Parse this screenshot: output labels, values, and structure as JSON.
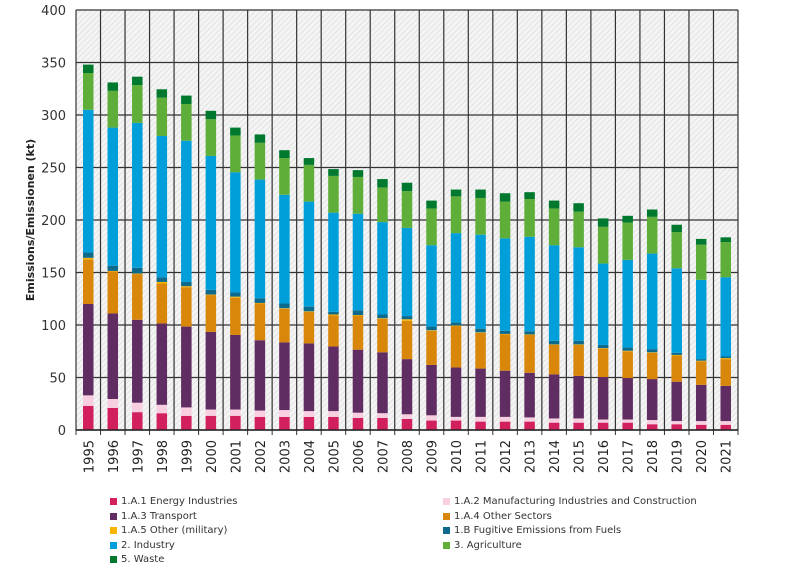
{
  "chart_data": {
    "type": "bar",
    "stacked": true,
    "title": "",
    "xlabel": "",
    "ylabel": "Emissions/Emissionen (kt)",
    "ylim": [
      0,
      400
    ],
    "yticks": [
      0,
      50,
      100,
      150,
      200,
      250,
      300,
      350,
      400
    ],
    "grid": true,
    "background": "hatched",
    "legend_position": "bottom",
    "categories": [
      "1995",
      "1996",
      "1997",
      "1998",
      "1999",
      "2000",
      "2001",
      "2002",
      "2003",
      "2004",
      "2005",
      "2006",
      "2007",
      "2008",
      "2009",
      "2010",
      "2011",
      "2012",
      "2013",
      "2014",
      "2015",
      "2016",
      "2017",
      "2018",
      "2019",
      "2020",
      "2021"
    ],
    "series": [
      {
        "name": "1.A.1 Energy Industries",
        "color": "#d2205f",
        "values": [
          23,
          21,
          17,
          16,
          13.5,
          13.5,
          13.5,
          12.5,
          12.5,
          12.5,
          12.5,
          11.5,
          11.5,
          10.5,
          9,
          9,
          8,
          8,
          8,
          7,
          7,
          7,
          7,
          5.5,
          5.5,
          5,
          5
        ]
      },
      {
        "name": "1.A.2 Manufacturing Industries and Construction",
        "color": "#f8cfe0",
        "values": [
          10,
          8.5,
          9,
          8,
          8,
          6,
          6,
          6,
          6.5,
          5.5,
          5.5,
          5,
          4.5,
          4.5,
          5,
          3.5,
          4.5,
          4.5,
          4,
          4,
          4,
          3,
          3,
          4,
          3,
          3.5,
          3.5
        ]
      },
      {
        "name": "1.A.3 Transport",
        "color": "#5f2d62",
        "values": [
          87,
          81.5,
          79,
          77.5,
          77,
          74,
          71,
          67,
          64.5,
          64.5,
          61.5,
          60,
          58,
          52.5,
          48,
          47,
          46,
          44,
          42.5,
          42,
          40.5,
          40.5,
          39.5,
          39,
          37.5,
          34.5,
          33.5
        ]
      },
      {
        "name": "1.A.4 Other Sectors",
        "color": "#d9870a",
        "values": [
          42.5,
          40,
          43.5,
          38,
          37.5,
          35,
          35.5,
          35,
          32,
          30,
          29.5,
          32.5,
          32,
          36.5,
          32.5,
          39.5,
          34,
          34.5,
          36,
          28,
          29.5,
          27,
          25.5,
          25,
          25,
          22.5,
          25.5
        ]
      },
      {
        "name": "1.A.5 Other (military)",
        "color": "#f7b500",
        "values": [
          1.5,
          0.5,
          0.5,
          1.5,
          1,
          0.5,
          1,
          0.5,
          0.5,
          0.5,
          1,
          0.5,
          0.5,
          1.5,
          0.5,
          0.5,
          0.5,
          0.5,
          0.5,
          0.5,
          0.5,
          0.5,
          0.5,
          0.5,
          0.5,
          0.5,
          1
        ]
      },
      {
        "name": "1.B Fugitive Emissions from Fuels",
        "color": "#0e6a8c",
        "values": [
          5,
          5,
          5.5,
          4.5,
          4,
          4.5,
          4,
          4.5,
          4.5,
          4.5,
          2.5,
          4.5,
          3.5,
          3,
          3.5,
          3,
          3.5,
          3,
          3,
          3.5,
          3.5,
          3,
          3,
          3,
          2,
          1.5,
          1.5
        ]
      },
      {
        "name": "2. Industry",
        "color": "#009fda",
        "values": [
          136,
          131.5,
          138,
          134.5,
          134.5,
          127.5,
          114.5,
          113,
          103.5,
          100,
          94.5,
          92,
          88,
          84,
          77.5,
          85,
          89.5,
          88,
          90,
          91,
          89,
          77.5,
          83.5,
          91,
          80.5,
          75.5,
          75.5
        ]
      },
      {
        "name": "3. Agriculture",
        "color": "#5fae39",
        "values": [
          35,
          35,
          36,
          36.5,
          35,
          35,
          35,
          35,
          35,
          35,
          35,
          35,
          33,
          35,
          35,
          35,
          35,
          35,
          36,
          35,
          34,
          35,
          35.5,
          35,
          34.5,
          33.5,
          33.5
        ]
      },
      {
        "name": "5. Waste",
        "color": "#00792f",
        "values": [
          8,
          8,
          8,
          8,
          8,
          8,
          7.5,
          8,
          7.5,
          6.5,
          6.5,
          6.5,
          8,
          8,
          7.5,
          6.5,
          8,
          8,
          6.5,
          7.5,
          8,
          8,
          6.5,
          7,
          7,
          5.5,
          4.5
        ]
      }
    ]
  },
  "legend": {
    "items": [
      {
        "label": "1.A.1 Energy Industries",
        "color": "#d2205f"
      },
      {
        "label": "1.A.2 Manufacturing Industries and Construction",
        "color": "#f8cfe0"
      },
      {
        "label": "1.A.3 Transport",
        "color": "#5f2d62"
      },
      {
        "label": "1.A.4 Other Sectors",
        "color": "#d9870a"
      },
      {
        "label": "1.A.5 Other (military)",
        "color": "#f7b500"
      },
      {
        "label": "1.B Fugitive Emissions from Fuels",
        "color": "#0e6a8c"
      },
      {
        "label": "2. Industry",
        "color": "#009fda"
      },
      {
        "label": "3. Agriculture",
        "color": "#5fae39"
      },
      {
        "label": "5. Waste",
        "color": "#00792f"
      }
    ]
  }
}
